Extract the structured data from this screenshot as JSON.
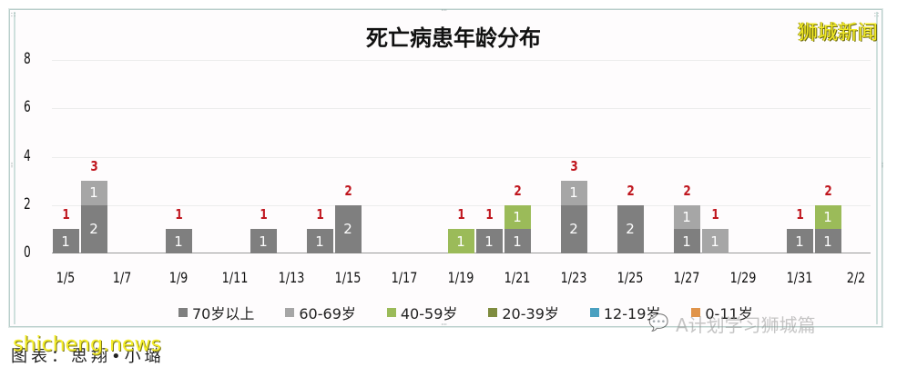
{
  "chart_data": {
    "type": "bar",
    "stacked": true,
    "title": "死亡病患年龄分布",
    "xlabel": "",
    "ylabel": "",
    "ylim": [
      0,
      8
    ],
    "yticks": [
      0,
      2,
      4,
      6,
      8
    ],
    "grid": true,
    "legend_position": "bottom",
    "x_tick_labels": [
      "1/5",
      "1/7",
      "1/9",
      "1/11",
      "1/13",
      "1/15",
      "1/17",
      "1/19",
      "1/21",
      "1/23",
      "1/25",
      "1/27",
      "1/29",
      "1/31",
      "2/2"
    ],
    "categories": [
      "1/5",
      "1/6",
      "1/7",
      "1/8",
      "1/9",
      "1/10",
      "1/11",
      "1/12",
      "1/13",
      "1/14",
      "1/15",
      "1/16",
      "1/17",
      "1/18",
      "1/19",
      "1/20",
      "1/21",
      "1/22",
      "1/23",
      "1/24",
      "1/25",
      "1/26",
      "1/27",
      "1/28",
      "1/29",
      "1/30",
      "1/31",
      "2/1",
      "2/2"
    ],
    "series": [
      {
        "name": "70岁以上",
        "color": "#7f7f7f",
        "values": [
          1,
          2,
          0,
          0,
          1,
          0,
          0,
          1,
          0,
          1,
          2,
          0,
          0,
          0,
          0,
          1,
          1,
          0,
          2,
          0,
          2,
          0,
          1,
          0,
          0,
          0,
          1,
          1,
          0
        ]
      },
      {
        "name": "60-69岁",
        "color": "#a6a6a6",
        "values": [
          0,
          1,
          0,
          0,
          0,
          0,
          0,
          0,
          0,
          0,
          0,
          0,
          0,
          0,
          0,
          0,
          0,
          0,
          1,
          0,
          0,
          0,
          1,
          1,
          0,
          0,
          0,
          0,
          0
        ]
      },
      {
        "name": "40-59岁",
        "color": "#9bbb59",
        "values": [
          0,
          0,
          0,
          0,
          0,
          0,
          0,
          0,
          0,
          0,
          0,
          0,
          0,
          0,
          1,
          0,
          1,
          0,
          0,
          0,
          0,
          0,
          0,
          0,
          0,
          0,
          0,
          1,
          0
        ]
      },
      {
        "name": "20-39岁",
        "color": "#7f8c3f",
        "values": [
          0,
          0,
          0,
          0,
          0,
          0,
          0,
          0,
          0,
          0,
          0,
          0,
          0,
          0,
          0,
          0,
          0,
          0,
          0,
          0,
          0,
          0,
          0,
          0,
          0,
          0,
          0,
          0,
          0
        ]
      },
      {
        "name": "12-19岁",
        "color": "#4aa0c0",
        "values": [
          0,
          0,
          0,
          0,
          0,
          0,
          0,
          0,
          0,
          0,
          0,
          0,
          0,
          0,
          0,
          0,
          0,
          0,
          0,
          0,
          0,
          0,
          0,
          0,
          0,
          0,
          0,
          0,
          0
        ]
      },
      {
        "name": "0-11岁",
        "color": "#e0944a",
        "values": [
          0,
          0,
          0,
          0,
          0,
          0,
          0,
          0,
          0,
          0,
          0,
          0,
          0,
          0,
          0,
          0,
          0,
          0,
          0,
          0,
          0,
          0,
          0,
          0,
          0,
          0,
          0,
          0,
          0
        ]
      }
    ],
    "totals": [
      1,
      3,
      0,
      0,
      1,
      0,
      0,
      1,
      0,
      1,
      2,
      0,
      0,
      0,
      1,
      1,
      2,
      0,
      3,
      0,
      2,
      0,
      2,
      1,
      0,
      0,
      1,
      2,
      0
    ],
    "total_label_color": "#c0171f"
  },
  "header": {
    "title": "死亡病患年龄分布",
    "brand": "狮城新闻"
  },
  "footer": {
    "credit": "图表：思翔•小璐",
    "watermark_site": "shicheng.news",
    "watermark_account": "A计划学习狮城篇"
  }
}
